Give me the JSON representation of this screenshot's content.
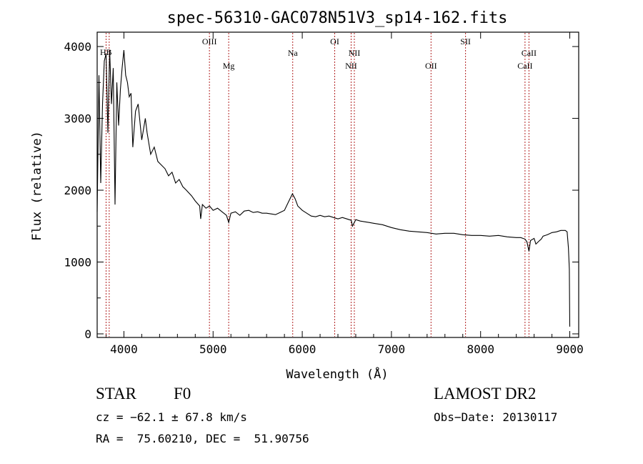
{
  "chart_data": {
    "type": "line",
    "title": "spec-56310-GAC078N51V3_sp14-162.fits",
    "xlabel": "Wavelength (Å)",
    "ylabel": "Flux (relative)",
    "xlim": [
      3700,
      9100
    ],
    "ylim": [
      -50,
      4200
    ],
    "x_ticks": [
      4000,
      5000,
      6000,
      7000,
      8000,
      9000
    ],
    "y_ticks": [
      0,
      1000,
      2000,
      3000,
      4000
    ],
    "grid": false,
    "line_color": "#000000",
    "marker_color": "#b22222",
    "series": [
      {
        "x": [
          3700,
          3720,
          3740,
          3760,
          3780,
          3800,
          3820,
          3840,
          3860,
          3880,
          3900,
          3920,
          3940,
          3960,
          3980,
          4000,
          4020,
          4040,
          4060,
          4080,
          4100,
          4130,
          4160,
          4200,
          4240,
          4260,
          4300,
          4340,
          4380,
          4420,
          4460,
          4500,
          4540,
          4580,
          4620,
          4660,
          4700,
          4760,
          4800,
          4850,
          4861,
          4880,
          4920,
          4960,
          5000,
          5050,
          5100,
          5150,
          5175,
          5200,
          5250,
          5300,
          5350,
          5400,
          5450,
          5500,
          5550,
          5600,
          5650,
          5700,
          5750,
          5800,
          5850,
          5890,
          5920,
          5950,
          6000,
          6050,
          6100,
          6150,
          6200,
          6250,
          6300,
          6350,
          6400,
          6450,
          6500,
          6550,
          6563,
          6600,
          6650,
          6700,
          6750,
          6800,
          6850,
          6900,
          6950,
          7000,
          7100,
          7200,
          7300,
          7400,
          7500,
          7600,
          7700,
          7800,
          7900,
          8000,
          8100,
          8200,
          8300,
          8400,
          8450,
          8498,
          8520,
          8542,
          8560,
          8600,
          8620,
          8662,
          8680,
          8700,
          8750,
          8800,
          8850,
          8900,
          8950,
          8970,
          8985,
          8995,
          9000
        ],
        "y": [
          1700,
          3600,
          2100,
          3200,
          3800,
          3900,
          2800,
          3950,
          3200,
          3700,
          1800,
          3500,
          2900,
          3400,
          3700,
          3950,
          3600,
          3500,
          3300,
          3350,
          2600,
          3100,
          3200,
          2700,
          3000,
          2800,
          2500,
          2600,
          2400,
          2350,
          2300,
          2200,
          2250,
          2100,
          2150,
          2050,
          2000,
          1920,
          1850,
          1780,
          1600,
          1800,
          1750,
          1780,
          1720,
          1750,
          1700,
          1650,
          1550,
          1680,
          1700,
          1650,
          1710,
          1720,
          1690,
          1700,
          1680,
          1680,
          1670,
          1660,
          1690,
          1720,
          1850,
          1950,
          1880,
          1780,
          1720,
          1680,
          1640,
          1630,
          1650,
          1630,
          1640,
          1620,
          1600,
          1620,
          1600,
          1580,
          1500,
          1590,
          1570,
          1560,
          1550,
          1540,
          1530,
          1520,
          1500,
          1480,
          1450,
          1430,
          1420,
          1410,
          1390,
          1400,
          1400,
          1380,
          1370,
          1370,
          1360,
          1370,
          1350,
          1340,
          1340,
          1320,
          1280,
          1150,
          1300,
          1330,
          1250,
          1300,
          1320,
          1360,
          1380,
          1410,
          1420,
          1440,
          1440,
          1420,
          1200,
          900,
          100
        ]
      }
    ],
    "lines": [
      {
        "label": "OIII",
        "x": 4959,
        "label_row": "upper"
      },
      {
        "label": "Mg",
        "x": 5175,
        "label_row": "lower"
      },
      {
        "label": "Na",
        "x": 5893,
        "label_row": "middle"
      },
      {
        "label": "OI",
        "x": 6364,
        "label_row": "upper"
      },
      {
        "label": "NII",
        "x": 6548,
        "label_row": "lower"
      },
      {
        "label": "NII",
        "x": 6584,
        "label_row": "middle"
      },
      {
        "label": "OII",
        "x": 7444,
        "label_row": "lower"
      },
      {
        "label": "SII",
        "x": 7831,
        "label_row": "upper"
      },
      {
        "label": "CaII",
        "x": 8498,
        "label_row": "lower"
      },
      {
        "label": "CaII",
        "x": 8542,
        "label_row": "middle"
      },
      {
        "label": "Hδ",
        "x": 3800,
        "label_row": "clipped"
      },
      {
        "label": "Hε",
        "x": 3835,
        "label_row": "clipped"
      }
    ],
    "clipped_label": "HB"
  },
  "info": {
    "object_type": "STAR",
    "subclass": "F0",
    "survey": "LAMOST DR2",
    "cz": "cz = −62.1 ± 67.8 km/s",
    "obs_date": "Obs−Date: 20130117",
    "radec": "RA =  75.60210, DEC =  51.90756"
  }
}
